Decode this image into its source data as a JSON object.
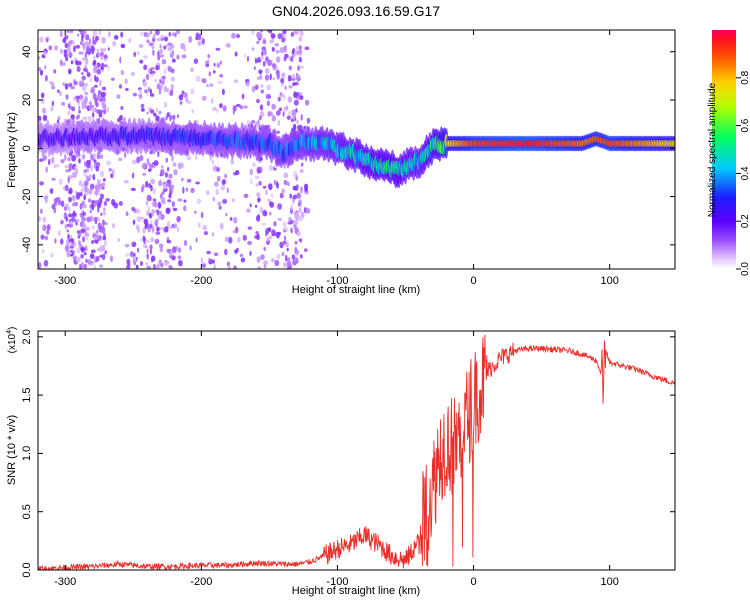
{
  "title": "GN04.2026.093.16.59.G17",
  "chart_data": [
    {
      "type": "heatmap",
      "name": "spectrogram",
      "xlabel": "Height of straight line (km)",
      "ylabel": "Frequency (Hz)",
      "xlim": [
        -320,
        148
      ],
      "ylim": [
        -50,
        49
      ],
      "xticks": [
        -300,
        -200,
        -100,
        0,
        100
      ],
      "yticks": [
        -40,
        -20,
        0,
        20,
        40
      ],
      "colorbar": {
        "label": "Normalized spectral amplitude",
        "range": [
          0,
          1
        ],
        "ticks": [
          0.0,
          0.2,
          0.4,
          0.6,
          0.8
        ],
        "tick_labels": [
          "0.0",
          "0.2",
          "0.4",
          "0.6",
          "0.8"
        ]
      },
      "ridge_center_hz": {
        "x": [
          -320,
          -280,
          -240,
          -200,
          -170,
          -150,
          -140,
          -130,
          -110,
          -90,
          -70,
          -55,
          -40,
          -30,
          -20,
          0,
          40,
          80,
          90,
          100,
          148
        ],
        "y": [
          4,
          5,
          5,
          4,
          3,
          2,
          -2,
          2,
          2,
          -2,
          -7,
          -9,
          -5,
          1,
          2,
          2,
          2,
          2,
          4,
          2,
          2
        ]
      },
      "ridge_peak_amplitude": {
        "x": [
          -320,
          -200,
          -140,
          -100,
          -60,
          -40,
          -20,
          0,
          40,
          80,
          100,
          148
        ],
        "y": [
          0.25,
          0.35,
          0.4,
          0.5,
          0.6,
          0.5,
          0.75,
          0.9,
          0.95,
          0.85,
          0.9,
          0.75
        ]
      }
    },
    {
      "type": "line",
      "name": "snr",
      "xlabel": "Height of straight line (km)",
      "ylabel": "SNR (10 * v/v)",
      "scale_label": "(x10",
      "scale_exponent": "4",
      "xlim": [
        -320,
        148
      ],
      "ylim": [
        0,
        2.05
      ],
      "xticks": [
        -300,
        -200,
        -100,
        0,
        100
      ],
      "yticks": [
        0,
        0.5,
        1.0,
        1.5,
        2.0
      ],
      "ytick_labels": [
        "0.0",
        "0.5",
        "1.0",
        "1.5",
        "2.0"
      ],
      "color": "#e8302a",
      "series": [
        {
          "name": "SNR",
          "x": [
            -320,
            -300,
            -280,
            -260,
            -240,
            -220,
            -200,
            -180,
            -160,
            -140,
            -130,
            -120,
            -110,
            -100,
            -90,
            -80,
            -70,
            -60,
            -50,
            -40,
            -35,
            -30,
            -25,
            -20,
            -15,
            -10,
            -5,
            0,
            10,
            20,
            30,
            40,
            50,
            60,
            70,
            80,
            90,
            95,
            97,
            100,
            110,
            120,
            130,
            148
          ],
          "y": [
            0.01,
            0.02,
            0.03,
            0.05,
            0.03,
            0.03,
            0.04,
            0.04,
            0.06,
            0.05,
            0.05,
            0.07,
            0.12,
            0.18,
            0.22,
            0.3,
            0.22,
            0.12,
            0.08,
            0.25,
            0.55,
            0.7,
            1.0,
            1.1,
            1.05,
            1.15,
            1.3,
            1.45,
            1.7,
            1.82,
            1.88,
            1.9,
            1.9,
            1.89,
            1.88,
            1.85,
            1.8,
            1.65,
            1.88,
            1.78,
            1.75,
            1.72,
            1.67,
            1.6
          ]
        }
      ]
    }
  ]
}
